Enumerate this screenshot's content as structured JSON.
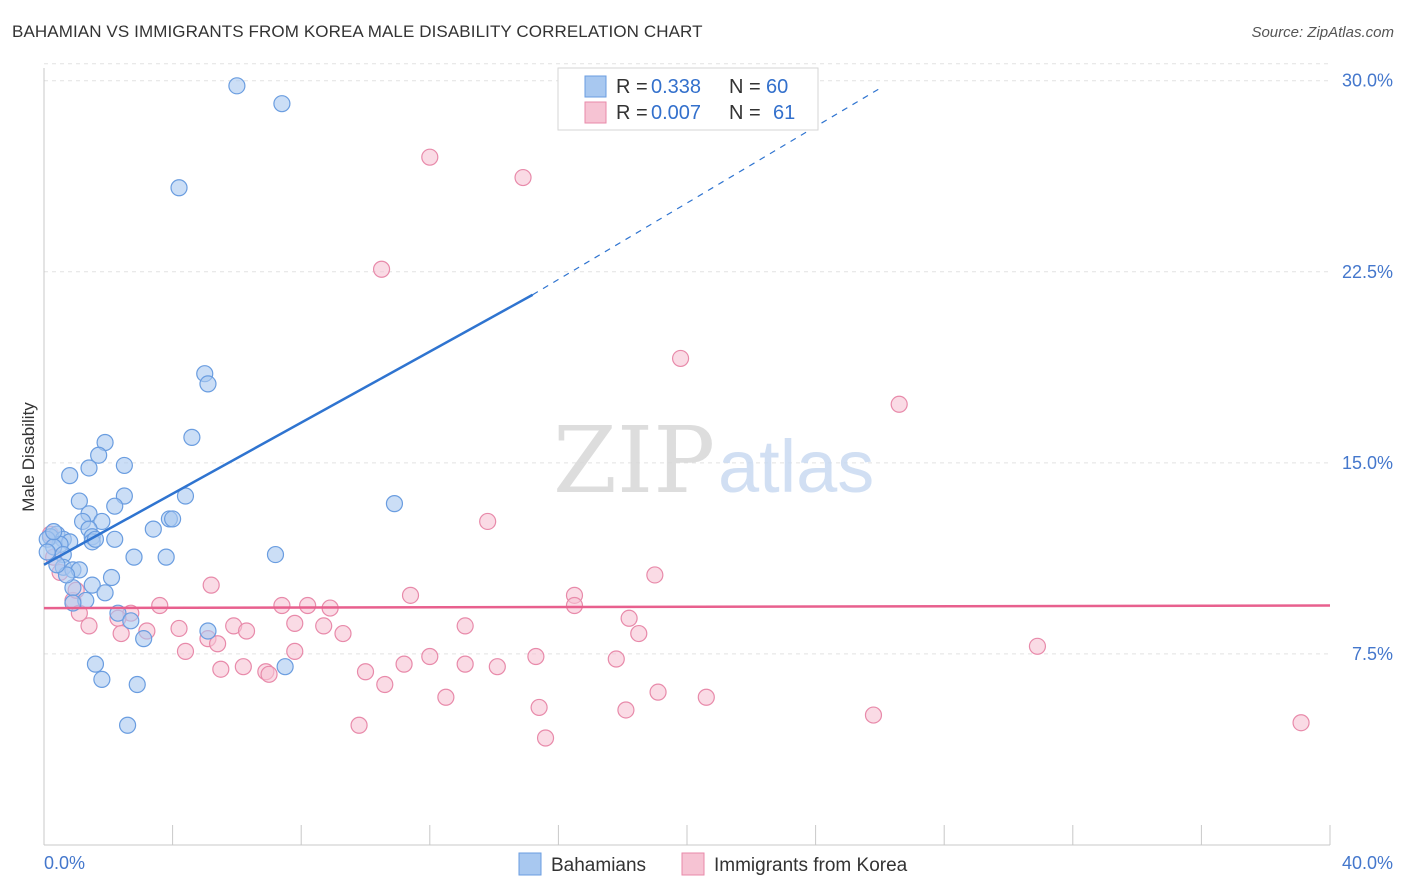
{
  "title": "BAHAMIAN VS IMMIGRANTS FROM KOREA MALE DISABILITY CORRELATION CHART",
  "source": "Source: ZipAtlas.com",
  "watermark": {
    "zip": "ZIP",
    "atlas": "atlas"
  },
  "colors": {
    "blue_fill": "#a8c8f0",
    "blue_stroke": "#6a9de0",
    "blue_line": "#2f74d0",
    "pink_fill": "#f6c3d3",
    "pink_stroke": "#e88aaa",
    "pink_line": "#e8608e",
    "tick_color": "#4477cc"
  },
  "legend": {
    "rows": [
      {
        "r_label": "R =",
        "r_value": "0.338",
        "n_label": "N =",
        "n_value": "60"
      },
      {
        "r_label": "R =",
        "r_value": "0.007",
        "n_label": "N =",
        "n_value": "61"
      }
    ]
  },
  "bottom_legend": [
    "Bahamians",
    "Immigrants from Korea"
  ],
  "chart_data": {
    "type": "scatter",
    "xlabel": "",
    "ylabel": "Male Disability",
    "xlim": [
      0,
      40
    ],
    "ylim": [
      0,
      30.5
    ],
    "x_tick_labels": [
      "0.0%",
      "40.0%"
    ],
    "y_ticks": [
      7.5,
      15.0,
      22.5,
      30.0
    ],
    "y_tick_labels": [
      "7.5%",
      "15.0%",
      "22.5%",
      "30.0%"
    ],
    "grid": true,
    "series": [
      {
        "name": "Bahamians",
        "r": 0.338,
        "n": 60,
        "trend": {
          "x0": 0,
          "y0": 11.0,
          "x1": 15.2,
          "y1": 21.6,
          "dash_to_x": 26.0,
          "dash_to_y": 29.7
        },
        "points": [
          [
            6.0,
            29.8
          ],
          [
            7.4,
            29.1
          ],
          [
            4.2,
            25.8
          ],
          [
            5.0,
            18.5
          ],
          [
            5.1,
            18.1
          ],
          [
            4.6,
            16.0
          ],
          [
            1.9,
            15.8
          ],
          [
            1.7,
            15.3
          ],
          [
            2.5,
            14.9
          ],
          [
            1.4,
            14.8
          ],
          [
            0.8,
            14.5
          ],
          [
            2.5,
            13.7
          ],
          [
            4.4,
            13.7
          ],
          [
            1.1,
            13.5
          ],
          [
            2.2,
            13.3
          ],
          [
            10.9,
            13.4
          ],
          [
            1.4,
            13.0
          ],
          [
            1.2,
            12.7
          ],
          [
            1.8,
            12.7
          ],
          [
            3.9,
            12.8
          ],
          [
            4.0,
            12.8
          ],
          [
            1.4,
            12.4
          ],
          [
            3.4,
            12.4
          ],
          [
            1.5,
            12.1
          ],
          [
            0.4,
            12.2
          ],
          [
            0.2,
            12.1
          ],
          [
            0.6,
            12.0
          ],
          [
            0.8,
            11.9
          ],
          [
            0.5,
            11.8
          ],
          [
            1.5,
            11.9
          ],
          [
            0.1,
            12.0
          ],
          [
            0.3,
            11.7
          ],
          [
            0.6,
            11.4
          ],
          [
            2.8,
            11.3
          ],
          [
            3.8,
            11.3
          ],
          [
            7.2,
            11.4
          ],
          [
            0.6,
            10.9
          ],
          [
            0.9,
            10.8
          ],
          [
            1.1,
            10.8
          ],
          [
            2.1,
            10.5
          ],
          [
            1.5,
            10.2
          ],
          [
            0.9,
            10.1
          ],
          [
            1.9,
            9.9
          ],
          [
            1.3,
            9.6
          ],
          [
            0.9,
            9.5
          ],
          [
            2.3,
            9.1
          ],
          [
            2.7,
            8.8
          ],
          [
            5.1,
            8.4
          ],
          [
            3.1,
            8.1
          ],
          [
            1.6,
            7.1
          ],
          [
            7.5,
            7.0
          ],
          [
            1.8,
            6.5
          ],
          [
            2.9,
            6.3
          ],
          [
            2.6,
            4.7
          ],
          [
            0.1,
            11.5
          ],
          [
            0.3,
            12.3
          ],
          [
            0.7,
            10.6
          ],
          [
            1.6,
            12.0
          ],
          [
            0.4,
            11.0
          ],
          [
            2.2,
            12.0
          ]
        ]
      },
      {
        "name": "Immigrants from Korea",
        "r": 0.007,
        "n": 61,
        "trend": {
          "x0": 0,
          "y0": 9.3,
          "x1": 40,
          "y1": 9.4
        },
        "points": [
          [
            12.0,
            27.0
          ],
          [
            14.9,
            26.2
          ],
          [
            10.5,
            22.6
          ],
          [
            19.8,
            19.1
          ],
          [
            26.6,
            17.3
          ],
          [
            13.8,
            12.7
          ],
          [
            0.2,
            12.2
          ],
          [
            0.5,
            10.7
          ],
          [
            19.0,
            10.6
          ],
          [
            5.2,
            10.2
          ],
          [
            11.4,
            9.8
          ],
          [
            16.5,
            9.8
          ],
          [
            16.5,
            9.4
          ],
          [
            7.4,
            9.4
          ],
          [
            8.2,
            9.4
          ],
          [
            0.9,
            9.6
          ],
          [
            3.6,
            9.4
          ],
          [
            1.1,
            9.1
          ],
          [
            2.7,
            9.1
          ],
          [
            8.9,
            9.3
          ],
          [
            18.2,
            8.9
          ],
          [
            2.3,
            8.9
          ],
          [
            1.4,
            8.6
          ],
          [
            5.9,
            8.6
          ],
          [
            7.8,
            8.7
          ],
          [
            8.7,
            8.6
          ],
          [
            13.1,
            8.6
          ],
          [
            2.4,
            8.3
          ],
          [
            3.2,
            8.4
          ],
          [
            4.2,
            8.5
          ],
          [
            6.3,
            8.4
          ],
          [
            9.3,
            8.3
          ],
          [
            18.5,
            8.3
          ],
          [
            5.1,
            8.1
          ],
          [
            5.4,
            7.9
          ],
          [
            4.4,
            7.6
          ],
          [
            7.8,
            7.6
          ],
          [
            30.9,
            7.8
          ],
          [
            12.0,
            7.4
          ],
          [
            15.3,
            7.4
          ],
          [
            17.8,
            7.3
          ],
          [
            11.2,
            7.1
          ],
          [
            13.1,
            7.1
          ],
          [
            14.1,
            7.0
          ],
          [
            6.2,
            7.0
          ],
          [
            5.5,
            6.9
          ],
          [
            6.9,
            6.8
          ],
          [
            7.0,
            6.7
          ],
          [
            10.0,
            6.8
          ],
          [
            10.6,
            6.3
          ],
          [
            19.1,
            6.0
          ],
          [
            20.6,
            5.8
          ],
          [
            12.5,
            5.8
          ],
          [
            15.4,
            5.4
          ],
          [
            18.1,
            5.3
          ],
          [
            25.8,
            5.1
          ],
          [
            39.1,
            4.8
          ],
          [
            9.8,
            4.7
          ],
          [
            15.6,
            4.2
          ],
          [
            1.0,
            10.0
          ],
          [
            0.3,
            11.3
          ]
        ]
      }
    ]
  }
}
